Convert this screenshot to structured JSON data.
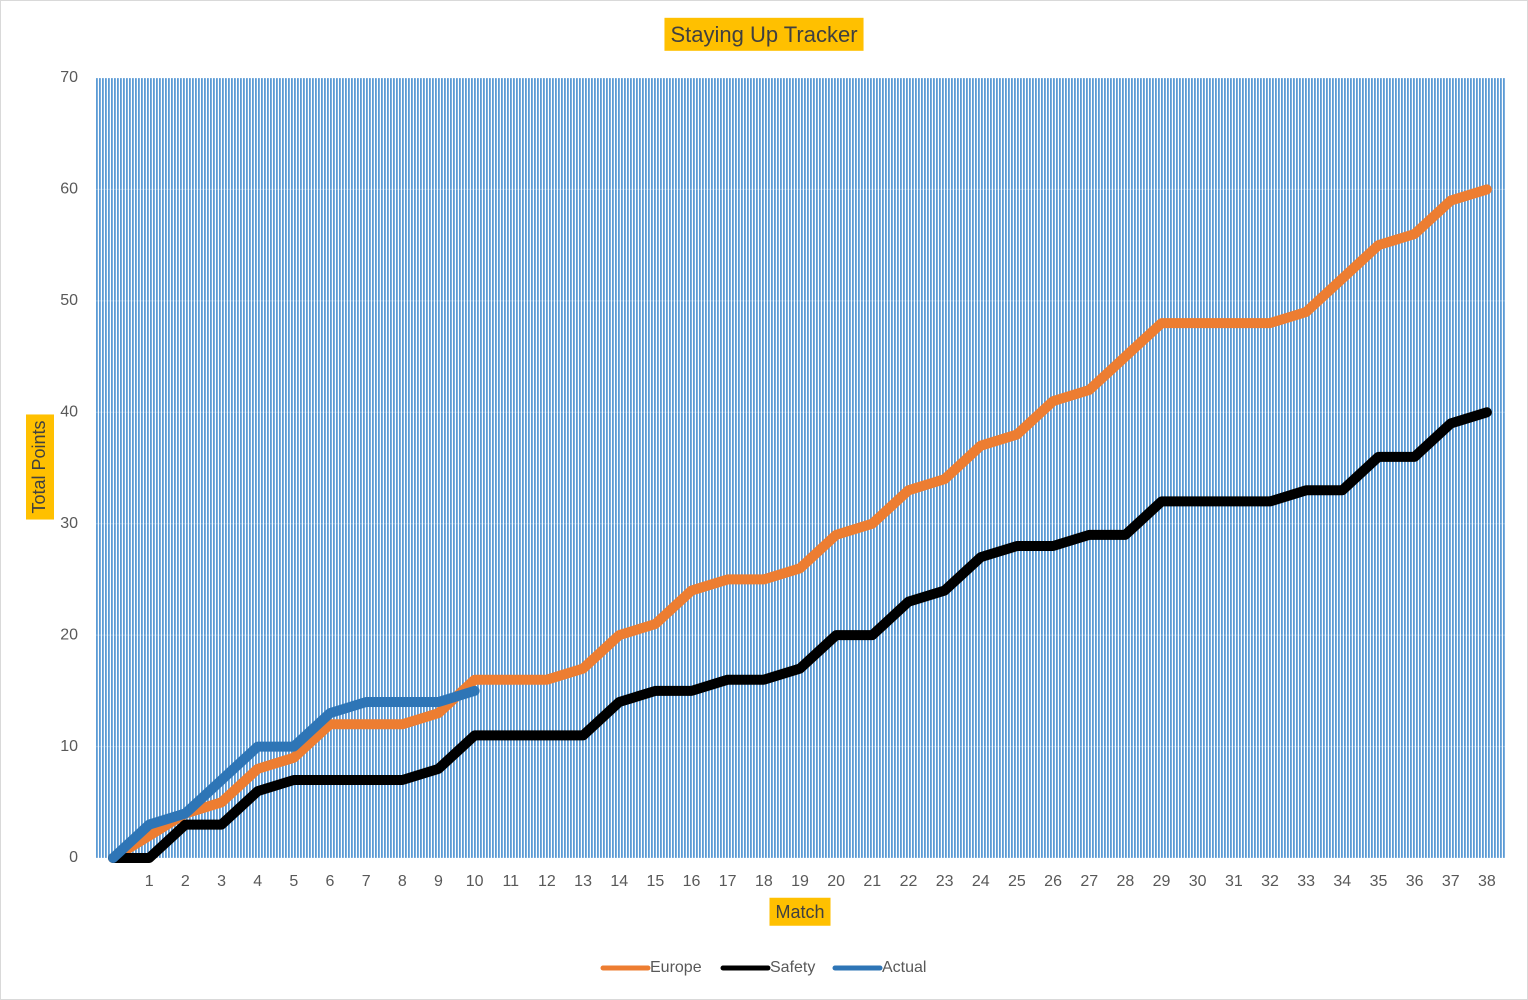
{
  "chart_data": {
    "type": "line",
    "title": "Staying Up Tracker",
    "x_label": "Match",
    "y_label": "Total Points",
    "categories": [
      null,
      "1",
      "2",
      "3",
      "4",
      "5",
      "6",
      "7",
      "8",
      "9",
      "10",
      "11",
      "12",
      "13",
      "14",
      "15",
      "16",
      "17",
      "18",
      "19",
      "20",
      "21",
      "22",
      "23",
      "24",
      "25",
      "26",
      "27",
      "28",
      "29",
      "30",
      "31",
      "32",
      "33",
      "34",
      "35",
      "36",
      "37",
      "38"
    ],
    "series": [
      {
        "name": "Europe",
        "color": "#ed7d31",
        "values": [
          0,
          2,
          4,
          5,
          8,
          9,
          12,
          12,
          12,
          13,
          16,
          16,
          16,
          17,
          20,
          21,
          24,
          25,
          25,
          26,
          29,
          30,
          33,
          34,
          37,
          38,
          41,
          42,
          45,
          48,
          48,
          48,
          48,
          49,
          52,
          55,
          56,
          59,
          60
        ]
      },
      {
        "name": "Safety",
        "color": "#000000",
        "values": [
          0,
          0,
          3,
          3,
          6,
          7,
          7,
          7,
          7,
          8,
          11,
          11,
          11,
          11,
          14,
          15,
          15,
          16,
          16,
          17,
          20,
          20,
          23,
          24,
          27,
          28,
          28,
          29,
          29,
          32,
          32,
          32,
          32,
          33,
          33,
          36,
          36,
          39,
          40
        ]
      },
      {
        "name": "Actual",
        "color": "#2e75b6",
        "values": [
          0,
          3,
          4,
          7,
          10,
          10,
          13,
          14,
          14,
          14,
          15,
          null,
          null,
          null,
          null,
          null,
          null,
          null,
          null,
          null,
          null,
          null,
          null,
          null,
          null,
          null,
          null,
          null,
          null,
          null,
          null,
          null,
          null,
          null,
          null,
          null,
          null,
          null,
          null
        ]
      }
    ],
    "ylim": [
      0,
      70
    ],
    "yticks": [
      0,
      10,
      20,
      30,
      40,
      50,
      60,
      70
    ],
    "legend": "bottom"
  }
}
